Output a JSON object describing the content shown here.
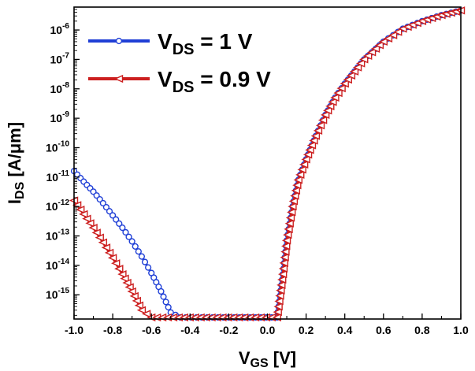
{
  "chart_data": {
    "type": "line",
    "x_scale": "linear",
    "y_scale": "log",
    "xlim": [
      -1.0,
      1.0
    ],
    "ylim": [
      1.5e-16,
      6e-06
    ],
    "grid": false,
    "legend_placement": "top-left",
    "x_ticks": [
      "-1.0",
      "-0.8",
      "-0.6",
      "-0.4",
      "-0.2",
      "0.0",
      "0.2",
      "0.4",
      "0.6",
      "0.8",
      "1.0"
    ],
    "y_ticks": [
      {
        "base": "10",
        "exp": "-6"
      },
      {
        "base": "10",
        "exp": "-7"
      },
      {
        "base": "10",
        "exp": "-8"
      },
      {
        "base": "10",
        "exp": "-9"
      },
      {
        "base": "10",
        "exp": "-10"
      },
      {
        "base": "10",
        "exp": "-11"
      },
      {
        "base": "10",
        "exp": "-12"
      },
      {
        "base": "10",
        "exp": "-13"
      },
      {
        "base": "10",
        "exp": "-14"
      },
      {
        "base": "10",
        "exp": "-15"
      }
    ],
    "xlabel": {
      "main": "V",
      "sub": "GS",
      "rest": " [V]"
    },
    "ylabel": {
      "main": "I",
      "sub": "DS",
      "rest": " [A/μm]"
    },
    "series": [
      {
        "name": {
          "main": "V",
          "sub": "DS",
          "rest": " = 1 V"
        },
        "color": "#1f3fd6",
        "marker": "circle",
        "points": [
          [
            -1.0,
            1.6e-11
          ],
          [
            -0.95,
            7e-12
          ],
          [
            -0.9,
            3.2e-12
          ],
          [
            -0.85,
            1.3e-12
          ],
          [
            -0.8,
            5e-13
          ],
          [
            -0.75,
            1.9e-13
          ],
          [
            -0.7,
            6.5e-14
          ],
          [
            -0.65,
            2e-14
          ],
          [
            -0.6,
            5.5e-15
          ],
          [
            -0.55,
            1.3e-15
          ],
          [
            -0.5,
            2.5e-16
          ],
          [
            -0.45,
            1.7e-16
          ],
          [
            0.05,
            1.7e-16
          ],
          [
            0.08,
            5e-15
          ],
          [
            0.1,
            7e-14
          ],
          [
            0.13,
            1e-12
          ],
          [
            0.16,
            8e-12
          ],
          [
            0.2,
            4e-11
          ],
          [
            0.25,
            2.5e-10
          ],
          [
            0.3,
            1.3e-09
          ],
          [
            0.35,
            5e-09
          ],
          [
            0.4,
            1.5e-08
          ],
          [
            0.5,
            1e-07
          ],
          [
            0.6,
            4e-07
          ],
          [
            0.7,
            1.1e-06
          ],
          [
            0.8,
            2e-06
          ],
          [
            0.9,
            3.2e-06
          ],
          [
            1.0,
            4.6e-06
          ]
        ]
      },
      {
        "name": {
          "main": "V",
          "sub": "DS",
          "rest": " = 0.9 V"
        },
        "color": "#cc1f1f",
        "marker": "triangle-left",
        "points": [
          [
            -1.0,
            1.6e-12
          ],
          [
            -0.95,
            5.5e-13
          ],
          [
            -0.9,
            1.9e-13
          ],
          [
            -0.85,
            6e-14
          ],
          [
            -0.8,
            1.8e-14
          ],
          [
            -0.75,
            5e-15
          ],
          [
            -0.7,
            1.3e-15
          ],
          [
            -0.65,
            3e-16
          ],
          [
            -0.6,
            1.7e-16
          ],
          [
            0.05,
            1.7e-16
          ],
          [
            0.08,
            5e-15
          ],
          [
            0.1,
            7e-14
          ],
          [
            0.13,
            1e-12
          ],
          [
            0.16,
            8e-12
          ],
          [
            0.2,
            4e-11
          ],
          [
            0.25,
            2.5e-10
          ],
          [
            0.3,
            1.3e-09
          ],
          [
            0.35,
            5e-09
          ],
          [
            0.4,
            1.5e-08
          ],
          [
            0.5,
            1e-07
          ],
          [
            0.6,
            4e-07
          ],
          [
            0.7,
            1.1e-06
          ],
          [
            0.8,
            2e-06
          ],
          [
            0.9,
            3.2e-06
          ],
          [
            1.0,
            4.6e-06
          ]
        ]
      }
    ]
  }
}
